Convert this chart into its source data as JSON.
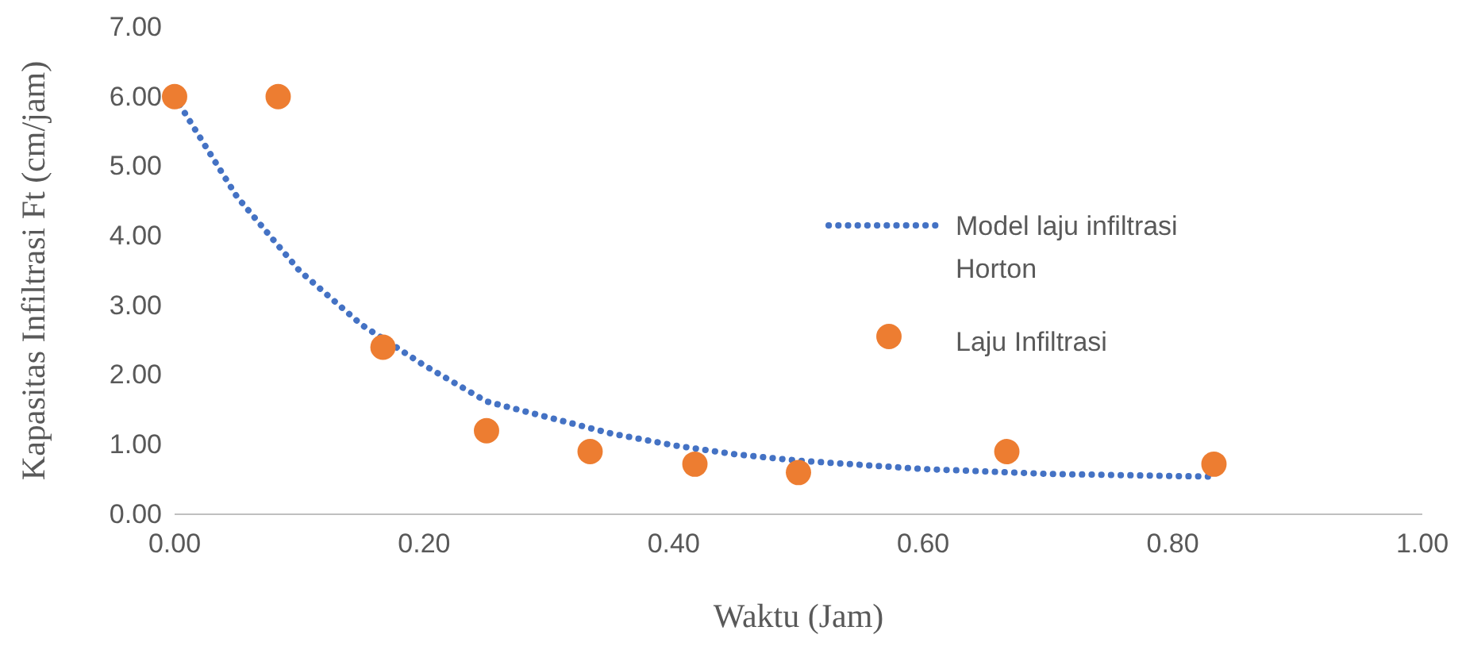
{
  "chart_data": {
    "type": "scatter",
    "xlabel": "Waktu (Jam)",
    "ylabel": "Kapasitas Infiltrasi Ft (cm/jam)",
    "xlim": [
      0,
      1
    ],
    "xticks": [
      {
        "value": 0,
        "label": "0.00"
      },
      {
        "value": 0.2,
        "label": "0.20"
      },
      {
        "value": 0.4,
        "label": "0.40"
      },
      {
        "value": 0.6,
        "label": "0.60"
      },
      {
        "value": 0.8,
        "label": "0.80"
      },
      {
        "value": 1,
        "label": "1.00"
      }
    ],
    "ylim": [
      0,
      7
    ],
    "yticks": [
      {
        "value": 0,
        "label": "0.00"
      },
      {
        "value": 1,
        "label": "1.00"
      },
      {
        "value": 2,
        "label": "2.00"
      },
      {
        "value": 3,
        "label": "3.00"
      },
      {
        "value": 4,
        "label": "4.00"
      },
      {
        "value": 5,
        "label": "5.00"
      },
      {
        "value": 6,
        "label": "6.00"
      },
      {
        "value": 7,
        "label": "7.00"
      }
    ],
    "grid": false,
    "legend": "right",
    "series": [
      {
        "name": "Model laju infiltrasi Horton",
        "type": "line",
        "line_style": "dotted",
        "marker": "none",
        "color": "#4472c4",
        "x": [
          0,
          0.05,
          0.1,
          0.15,
          0.2,
          0.25,
          0.3,
          0.35,
          0.4,
          0.45,
          0.5,
          0.6,
          0.7,
          0.833
        ],
        "values": [
          6.0,
          4.56,
          3.5,
          2.72,
          2.14,
          1.62,
          1.39,
          1.16,
          0.99,
          0.86,
          0.77,
          0.65,
          0.58,
          0.54
        ]
      },
      {
        "name": "Laju Infiltrasi",
        "type": "scatter",
        "marker": "circle",
        "color": "#ed7d31",
        "x": [
          0,
          0.083,
          0.167,
          0.25,
          0.333,
          0.417,
          0.5,
          0.667,
          0.833
        ],
        "values": [
          6.0,
          6.0,
          2.4,
          1.2,
          0.9,
          0.72,
          0.6,
          0.9,
          0.72
        ]
      }
    ]
  }
}
